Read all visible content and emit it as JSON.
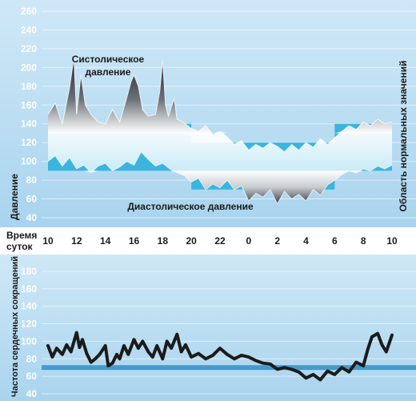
{
  "colors": {
    "background": "#b9dcf2",
    "normal_band": "#3bb5de",
    "systolic_fill": "#2a2f36",
    "diastolic_fill": "#4a5058",
    "mid_fill": "#ffffff",
    "heart_rate_line": "#1b1b1b",
    "reference_line": "#2f8fc8",
    "time_row": "#ffffff",
    "grid": "#ffffff"
  },
  "chart_data": [
    {
      "type": "area",
      "ylabel": "Давление",
      "right_label": "Область нормальных значений",
      "time_axis_label": [
        "Время",
        "суток"
      ],
      "ylim": [
        40,
        260
      ],
      "y_ticks": [
        40,
        60,
        80,
        100,
        120,
        140,
        160,
        180,
        200,
        220,
        240,
        260
      ],
      "x_tick_labels": [
        "10",
        "12",
        "14",
        "16",
        "18",
        "20",
        "22",
        "0",
        "2",
        "4",
        "6",
        "8",
        "10"
      ],
      "annotations": [
        {
          "id": "systolic",
          "lines": [
            "Систолическое",
            "давление"
          ]
        },
        {
          "id": "diastolic",
          "lines": [
            "Диастолическое давление"
          ]
        }
      ],
      "normal_range": {
        "day": {
          "x": [
            10,
            20
          ],
          "low": 90,
          "high": 140
        },
        "night": {
          "x": [
            20,
            30
          ],
          "low": 70,
          "high": 120
        },
        "morning": {
          "x": [
            30,
            34
          ],
          "low": 90,
          "high": 140
        }
      },
      "series": [
        {
          "id": "systolic",
          "x": [
            10,
            10.5,
            11,
            11.5,
            11.8,
            12,
            12.3,
            12.6,
            13,
            13.5,
            14,
            14.5,
            15,
            15.5,
            15.8,
            16,
            16.3,
            16.6,
            17,
            17.5,
            17.8,
            18,
            18.2,
            18.4,
            18.8,
            19,
            19.4,
            20,
            20.5,
            21,
            21.5,
            22,
            22.5,
            23,
            23.5,
            24,
            24.5,
            25,
            25.5,
            26,
            26.5,
            27,
            27.5,
            28,
            28.5,
            29,
            29.5,
            30,
            30.5,
            31,
            31.5,
            32,
            32.5,
            33,
            33.5,
            34
          ],
          "values": [
            150,
            162,
            140,
            178,
            210,
            150,
            192,
            160,
            150,
            142,
            140,
            155,
            142,
            168,
            185,
            192,
            180,
            155,
            148,
            150,
            175,
            207,
            160,
            148,
            167,
            145,
            142,
            135,
            132,
            138,
            128,
            132,
            126,
            118,
            122,
            112,
            118,
            114,
            120,
            116,
            110,
            118,
            112,
            120,
            115,
            124,
            118,
            125,
            132,
            138,
            134,
            142,
            138,
            145,
            140,
            142
          ]
        },
        {
          "id": "diastolic",
          "x": [
            10,
            10.5,
            11,
            11.5,
            12,
            12.5,
            13,
            13.5,
            14,
            14.5,
            15,
            15.5,
            16,
            16.5,
            17,
            17.5,
            18,
            18.5,
            19,
            19.5,
            20,
            20.5,
            21,
            21.5,
            22,
            22.5,
            23,
            23.5,
            24,
            24.5,
            25,
            25.5,
            26,
            26.5,
            27,
            27.5,
            28,
            28.5,
            29,
            29.5,
            30,
            30.5,
            31,
            31.5,
            32,
            32.5,
            33,
            33.5,
            34
          ],
          "values": [
            100,
            106,
            95,
            104,
            92,
            96,
            88,
            95,
            98,
            90,
            94,
            100,
            96,
            110,
            102,
            95,
            98,
            92,
            88,
            85,
            78,
            82,
            70,
            76,
            72,
            80,
            70,
            74,
            58,
            66,
            62,
            70,
            55,
            68,
            60,
            65,
            58,
            70,
            64,
            75,
            80,
            86,
            90,
            88,
            92,
            90,
            95,
            92,
            96
          ]
        }
      ]
    },
    {
      "type": "line",
      "ylabel": "Частота сердечных сокращений",
      "ylim": [
        40,
        190
      ],
      "y_ticks": [
        40,
        60,
        80,
        100,
        120,
        140,
        160,
        180
      ],
      "reference_line": 70,
      "series": [
        {
          "id": "heart_rate",
          "x": [
            10,
            10.3,
            10.6,
            11,
            11.3,
            11.6,
            12,
            12.2,
            12.4,
            12.7,
            13,
            13.3,
            13.6,
            14,
            14.2,
            14.5,
            14.8,
            15,
            15.3,
            15.6,
            16,
            16.3,
            16.6,
            17,
            17.3,
            17.6,
            18,
            18.3,
            18.6,
            19,
            19.3,
            19.6,
            20,
            20.5,
            21,
            21.5,
            22,
            22.5,
            23,
            23.5,
            24,
            24.5,
            25,
            25.5,
            26,
            26.5,
            27,
            27.5,
            28,
            28.5,
            29,
            29.5,
            30,
            30.5,
            31,
            31.5,
            32,
            32.3,
            32.6,
            33,
            33.3,
            33.6,
            34
          ],
          "values": [
            95,
            82,
            92,
            85,
            96,
            88,
            110,
            93,
            102,
            86,
            76,
            80,
            85,
            95,
            72,
            75,
            85,
            80,
            95,
            85,
            102,
            92,
            100,
            88,
            82,
            95,
            80,
            100,
            92,
            108,
            88,
            96,
            82,
            86,
            80,
            84,
            92,
            85,
            80,
            84,
            82,
            78,
            75,
            74,
            68,
            70,
            68,
            65,
            58,
            62,
            56,
            66,
            62,
            70,
            65,
            76,
            72,
            90,
            105,
            109,
            96,
            88,
            107
          ]
        }
      ]
    }
  ]
}
